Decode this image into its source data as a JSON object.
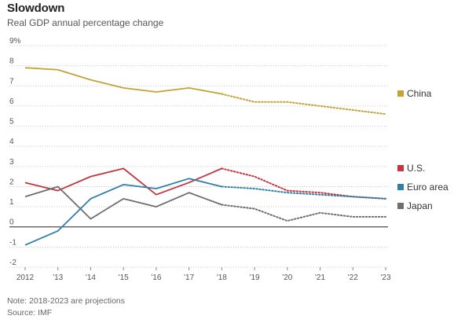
{
  "title": "Slowdown",
  "subtitle": "Real GDP annual percentage change",
  "note": "Note: 2018-2023 are projections",
  "source": "Source: IMF",
  "chart_data": {
    "type": "line",
    "title": "Slowdown",
    "subtitle": "Real GDP annual percentage change",
    "x": [
      2012,
      2013,
      2014,
      2015,
      2016,
      2017,
      2018,
      2019,
      2020,
      2021,
      2022,
      2023
    ],
    "x_tick_labels": [
      "2012",
      "'13",
      "'14",
      "'15",
      "'16",
      "'17",
      "'18",
      "'19",
      "'20",
      "'21",
      "'22",
      "'23"
    ],
    "ylim": [
      -2,
      9
    ],
    "y_ticks": [
      9,
      8,
      7,
      6,
      5,
      4,
      3,
      2,
      1,
      0,
      -1,
      -2
    ],
    "y_tick_labels": [
      "9%",
      "8",
      "7",
      "6",
      "5",
      "4",
      "3",
      "2",
      "1",
      "0",
      "-1",
      "-2"
    ],
    "projection_start": 2018,
    "grid": "horizontal-dotted",
    "legend_placement": "right",
    "series": [
      {
        "name": "China",
        "color": "#c4a235",
        "values": [
          7.9,
          7.8,
          7.3,
          6.9,
          6.7,
          6.9,
          6.6,
          6.2,
          6.2,
          6.0,
          5.8,
          5.6
        ]
      },
      {
        "name": "U.S.",
        "color": "#c1363f",
        "values": [
          2.2,
          1.8,
          2.5,
          2.9,
          1.6,
          2.2,
          2.9,
          2.5,
          1.8,
          1.7,
          1.5,
          1.4
        ]
      },
      {
        "name": "Euro area",
        "color": "#2f7fa8",
        "values": [
          -0.9,
          -0.2,
          1.4,
          2.1,
          1.9,
          2.4,
          2.0,
          1.9,
          1.7,
          1.6,
          1.5,
          1.4
        ]
      },
      {
        "name": "Japan",
        "color": "#6e6e6e",
        "values": [
          1.5,
          2.0,
          0.4,
          1.4,
          1.0,
          1.7,
          1.1,
          0.9,
          0.3,
          0.7,
          0.5,
          0.5
        ]
      }
    ]
  }
}
